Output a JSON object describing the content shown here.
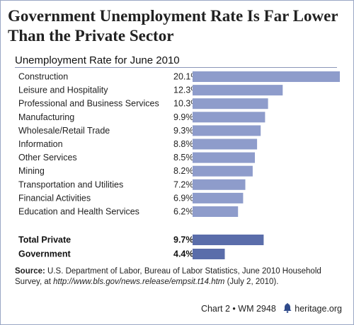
{
  "header": {
    "title": "Government Unemployment Rate Is Far Lower Than the Private Sector",
    "subtitle": "Unemployment Rate for June 2010"
  },
  "colors": {
    "sector_bar": "#8e9ccb",
    "total_bar": "#5a6daa",
    "rule": "#8a96b8"
  },
  "chart_data": {
    "type": "bar",
    "orientation": "horizontal",
    "unit": "%",
    "categories": [
      "Construction",
      "Leisure and Hospitality",
      "Professional and Business Services",
      "Manufacturing",
      "Wholesale/Retail Trade",
      "Information",
      "Other Services",
      "Mining",
      "Transportation and Utilities",
      "Financial Activities",
      "Education and Health Services"
    ],
    "values": [
      20.1,
      12.3,
      10.3,
      9.9,
      9.3,
      8.8,
      8.5,
      8.2,
      7.2,
      6.9,
      6.2
    ],
    "value_labels": [
      "20.1%",
      "12.3%",
      "10.3%",
      "9.9%",
      "9.3%",
      "8.8%",
      "8.5%",
      "8.2%",
      "7.2%",
      "6.9%",
      "6.2%"
    ],
    "totals": {
      "categories": [
        "Total Private",
        "Government"
      ],
      "values": [
        9.7,
        4.4
      ],
      "value_labels": [
        "9.7%",
        "4.4%"
      ]
    },
    "xlim": [
      0,
      20.1
    ],
    "grid": false,
    "legend": false
  },
  "source": {
    "label": "Source:",
    "text1": " U.S. Department of Labor, Bureau of Labor Statistics, June 2010 Household Survey, at ",
    "url": "http://www.bls.gov/news.release/empsit.t14.htm",
    "text2": " (July 2, 2010)."
  },
  "footer": {
    "chart_label": "Chart 2",
    "separator": "•",
    "report_id": "WM 2948",
    "site": "heritage.org",
    "logo_icon": "liberty-bell-icon"
  }
}
